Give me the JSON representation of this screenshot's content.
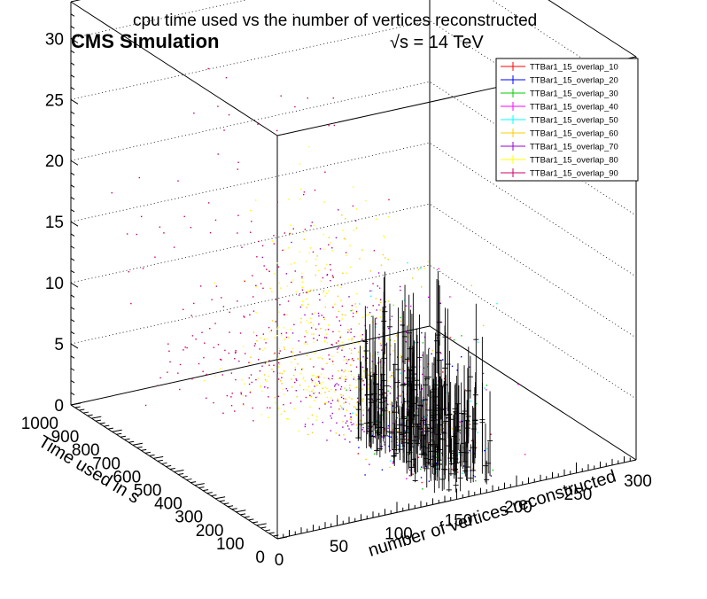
{
  "header": {
    "title": "cpu time used vs the number of vertices reconstructed",
    "cms_label": "CMS Simulation",
    "energy_label": "√s = 14 TeV"
  },
  "chart_data": {
    "type": "scatter",
    "title": "cpu time used vs the number of vertices reconstructed",
    "xlabel": "number of vertices reconstructed",
    "ylabel": "Time used in s",
    "zlabel": "",
    "xlim": [
      0,
      300
    ],
    "ylim": [
      0,
      1000
    ],
    "zlim": [
      0,
      33
    ],
    "x_ticks": [
      "0",
      "50",
      "100",
      "150",
      "200",
      "250",
      "300"
    ],
    "y_ticks": [
      "0",
      "100",
      "200",
      "300",
      "400",
      "500",
      "600",
      "700",
      "800",
      "900",
      "1000"
    ],
    "z_ticks": [
      "0",
      "5",
      "10",
      "15",
      "20",
      "25",
      "30"
    ],
    "grid": "z-gridlines on back wall",
    "legend_position": "top-right",
    "series": [
      {
        "name": "TTBar1_15_overlap_10",
        "color": "#ff0000",
        "x_range": [
          140,
          190
        ],
        "y_range": [
          50,
          350
        ],
        "z_range": [
          0,
          8
        ],
        "cluster": true
      },
      {
        "name": "TTBar1_15_overlap_20",
        "color": "#0000ff",
        "x_range": [
          140,
          190
        ],
        "y_range": [
          80,
          400
        ],
        "z_range": [
          0,
          9
        ],
        "cluster": true
      },
      {
        "name": "TTBar1_15_overlap_30",
        "color": "#00cc00",
        "x_range": [
          140,
          195
        ],
        "y_range": [
          100,
          450
        ],
        "z_range": [
          0,
          10
        ],
        "cluster": true
      },
      {
        "name": "TTBar1_15_overlap_40",
        "color": "#ff00ff",
        "x_range": [
          140,
          195
        ],
        "y_range": [
          120,
          500
        ],
        "z_range": [
          0,
          11
        ],
        "cluster": true
      },
      {
        "name": "TTBar1_15_overlap_50",
        "color": "#00ffff",
        "x_range": [
          140,
          195
        ],
        "y_range": [
          150,
          550
        ],
        "z_range": [
          0,
          12
        ],
        "cluster": true
      },
      {
        "name": "TTBar1_15_overlap_60",
        "color": "#ffcc00",
        "x_range": [
          135,
          200
        ],
        "y_range": [
          350,
          800
        ],
        "z_range": [
          0,
          13
        ],
        "cluster": false
      },
      {
        "name": "TTBar1_15_overlap_70",
        "color": "#9900cc",
        "x_range": [
          130,
          200
        ],
        "y_range": [
          300,
          750
        ],
        "z_range": [
          0,
          12
        ],
        "cluster": false
      },
      {
        "name": "TTBar1_15_overlap_80",
        "color": "#ffff00",
        "x_range": [
          120,
          200
        ],
        "y_range": [
          550,
          900
        ],
        "z_range": [
          0,
          15
        ],
        "cluster": false
      },
      {
        "name": "TTBar1_15_overlap_90",
        "color": "#cc0066",
        "x_range": [
          60,
          200
        ],
        "y_range": [
          700,
          1000
        ],
        "z_range": [
          0,
          22
        ],
        "cluster": false
      }
    ]
  }
}
